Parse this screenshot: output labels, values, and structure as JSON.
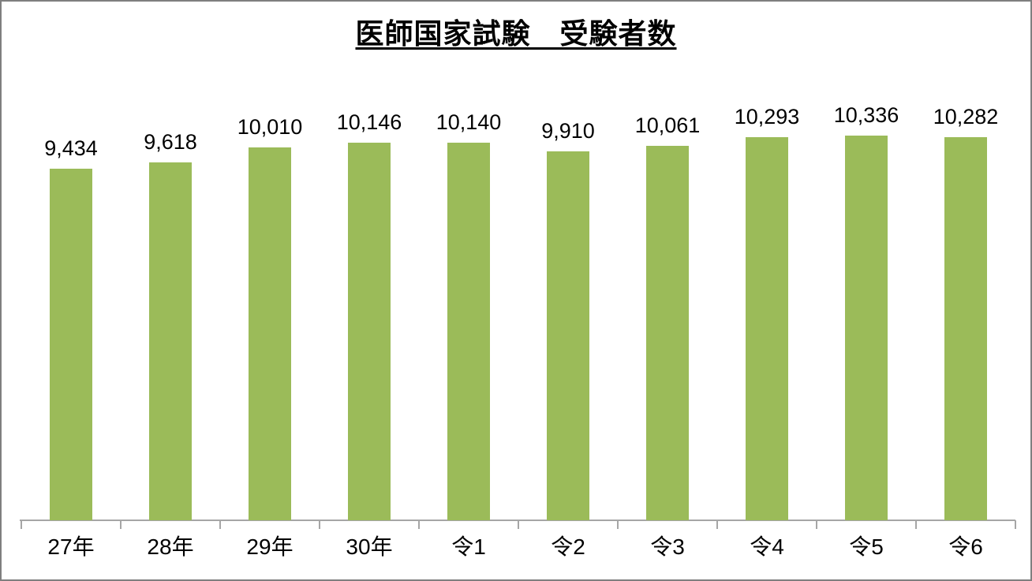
{
  "chart_data": {
    "type": "bar",
    "title": "医師国家試験　受験者数",
    "categories": [
      "27年",
      "28年",
      "29年",
      "30年",
      "令1",
      "令2",
      "令3",
      "令4",
      "令5",
      "令6"
    ],
    "values": [
      9434,
      9618,
      10010,
      10146,
      10140,
      9910,
      10061,
      10293,
      10336,
      10282
    ],
    "value_labels": [
      "9,434",
      "9,618",
      "10,010",
      "10,146",
      "10,140",
      "9,910",
      "10,061",
      "10,293",
      "10,336",
      "10,282"
    ],
    "xlabel": "",
    "ylabel": "",
    "ylim": [
      0,
      12000
    ],
    "grid": false,
    "legend": false,
    "bar_color": "#9BBB59",
    "axis_color": "#A6A6A6",
    "title_color": "#000000",
    "label_color": "#000000",
    "background_color": "#FFFFFF",
    "border_color": "#7F7F7F"
  }
}
